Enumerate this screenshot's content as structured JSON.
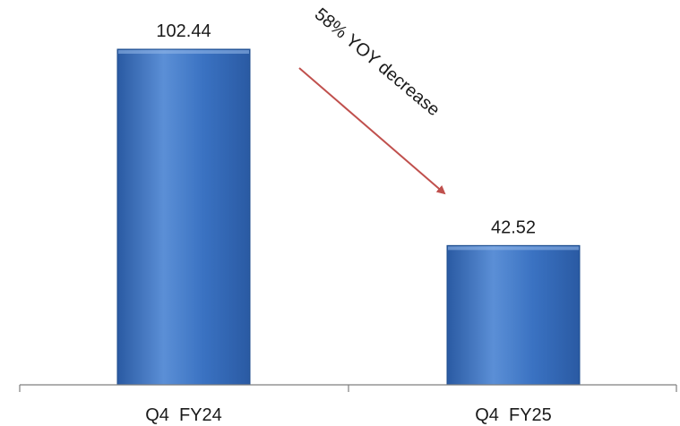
{
  "chart_data": {
    "type": "bar",
    "categories": [
      "Q4  FY24",
      "Q4  FY25"
    ],
    "values": [
      102.44,
      42.52
    ],
    "data_labels": [
      "102.44",
      "42.52"
    ],
    "title": "",
    "xlabel": "",
    "ylabel": "",
    "ylim": [
      0,
      102.44
    ],
    "grid": false,
    "legend": "none",
    "annotation": {
      "text": "58% YOY decrease",
      "arrow_color": "#c0504d"
    },
    "colors": {
      "bar_top": "#5b8fd6",
      "bar_mid": "#3a72c2",
      "bar_bottom": "#2a5aa3",
      "bar_edge": "#1f4e8c",
      "axis": "#7f7f7f"
    }
  }
}
